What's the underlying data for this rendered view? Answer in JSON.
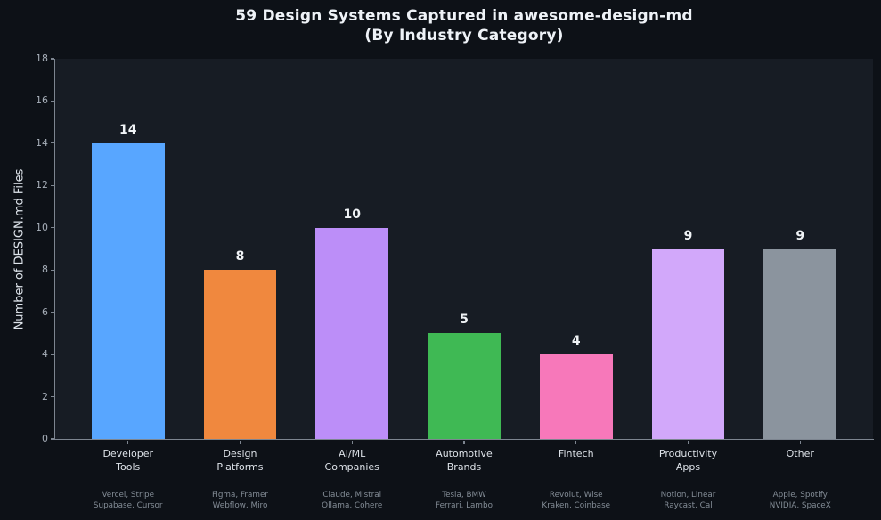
{
  "title": {
    "line1": "59 Design Systems Captured in awesome-design-md",
    "line2": "(By Industry Category)"
  },
  "chart_data": {
    "type": "bar",
    "title": "59 Design Systems Captured in awesome-design-md (By Industry Category)",
    "xlabel": "",
    "ylabel": "Number of DESIGN.md Files",
    "ylim": [
      0,
      18
    ],
    "yticks": [
      0,
      2,
      4,
      6,
      8,
      10,
      12,
      14,
      16,
      18
    ],
    "grid": false,
    "legend_position": "none",
    "categories": [
      "Developer Tools",
      "Design Platforms",
      "AI/ML Companies",
      "Automotive Brands",
      "Fintech",
      "Productivity Apps",
      "Other"
    ],
    "category_label_lines": [
      [
        "Developer",
        "Tools"
      ],
      [
        "Design",
        "Platforms"
      ],
      [
        "AI/ML",
        "Companies"
      ],
      [
        "Automotive",
        "Brands"
      ],
      [
        "Fintech"
      ],
      [
        "Productivity",
        "Apps"
      ],
      [
        "Other"
      ]
    ],
    "values": [
      14,
      8,
      10,
      5,
      4,
      9,
      9
    ],
    "value_labels": [
      "14",
      "8",
      "10",
      "5",
      "4",
      "9",
      "9"
    ],
    "bar_colors": [
      "#58a6ff",
      "#f0883e",
      "#bc8ef8",
      "#3fb954",
      "#f778ba",
      "#d2a8fa",
      "#8b949e"
    ],
    "sub_labels": [
      [
        "Vercel, Stripe",
        "Supabase, Cursor"
      ],
      [
        "Figma, Framer",
        "Webflow, Miro"
      ],
      [
        "Claude, Mistral",
        "Ollama, Cohere"
      ],
      [
        "Tesla, BMW",
        "Ferrari, Lambo"
      ],
      [
        "Revolut, Wise",
        "Kraken, Coinbase"
      ],
      [
        "Notion, Linear",
        "Raycast, Cal"
      ],
      [
        "Apple, Spotify",
        "NVIDIA, SpaceX"
      ]
    ]
  },
  "colors": {
    "page_bg": "#0d1117",
    "plot_bg": "#171c24",
    "axis": "#7d8590",
    "tick_label": "#a6aeb8",
    "category_label": "#dde2e8",
    "sub_label": "#848d97",
    "value_label": "#f0f3f6",
    "title": "#eef2f7",
    "y_axis_title": "#dfe5ec"
  }
}
